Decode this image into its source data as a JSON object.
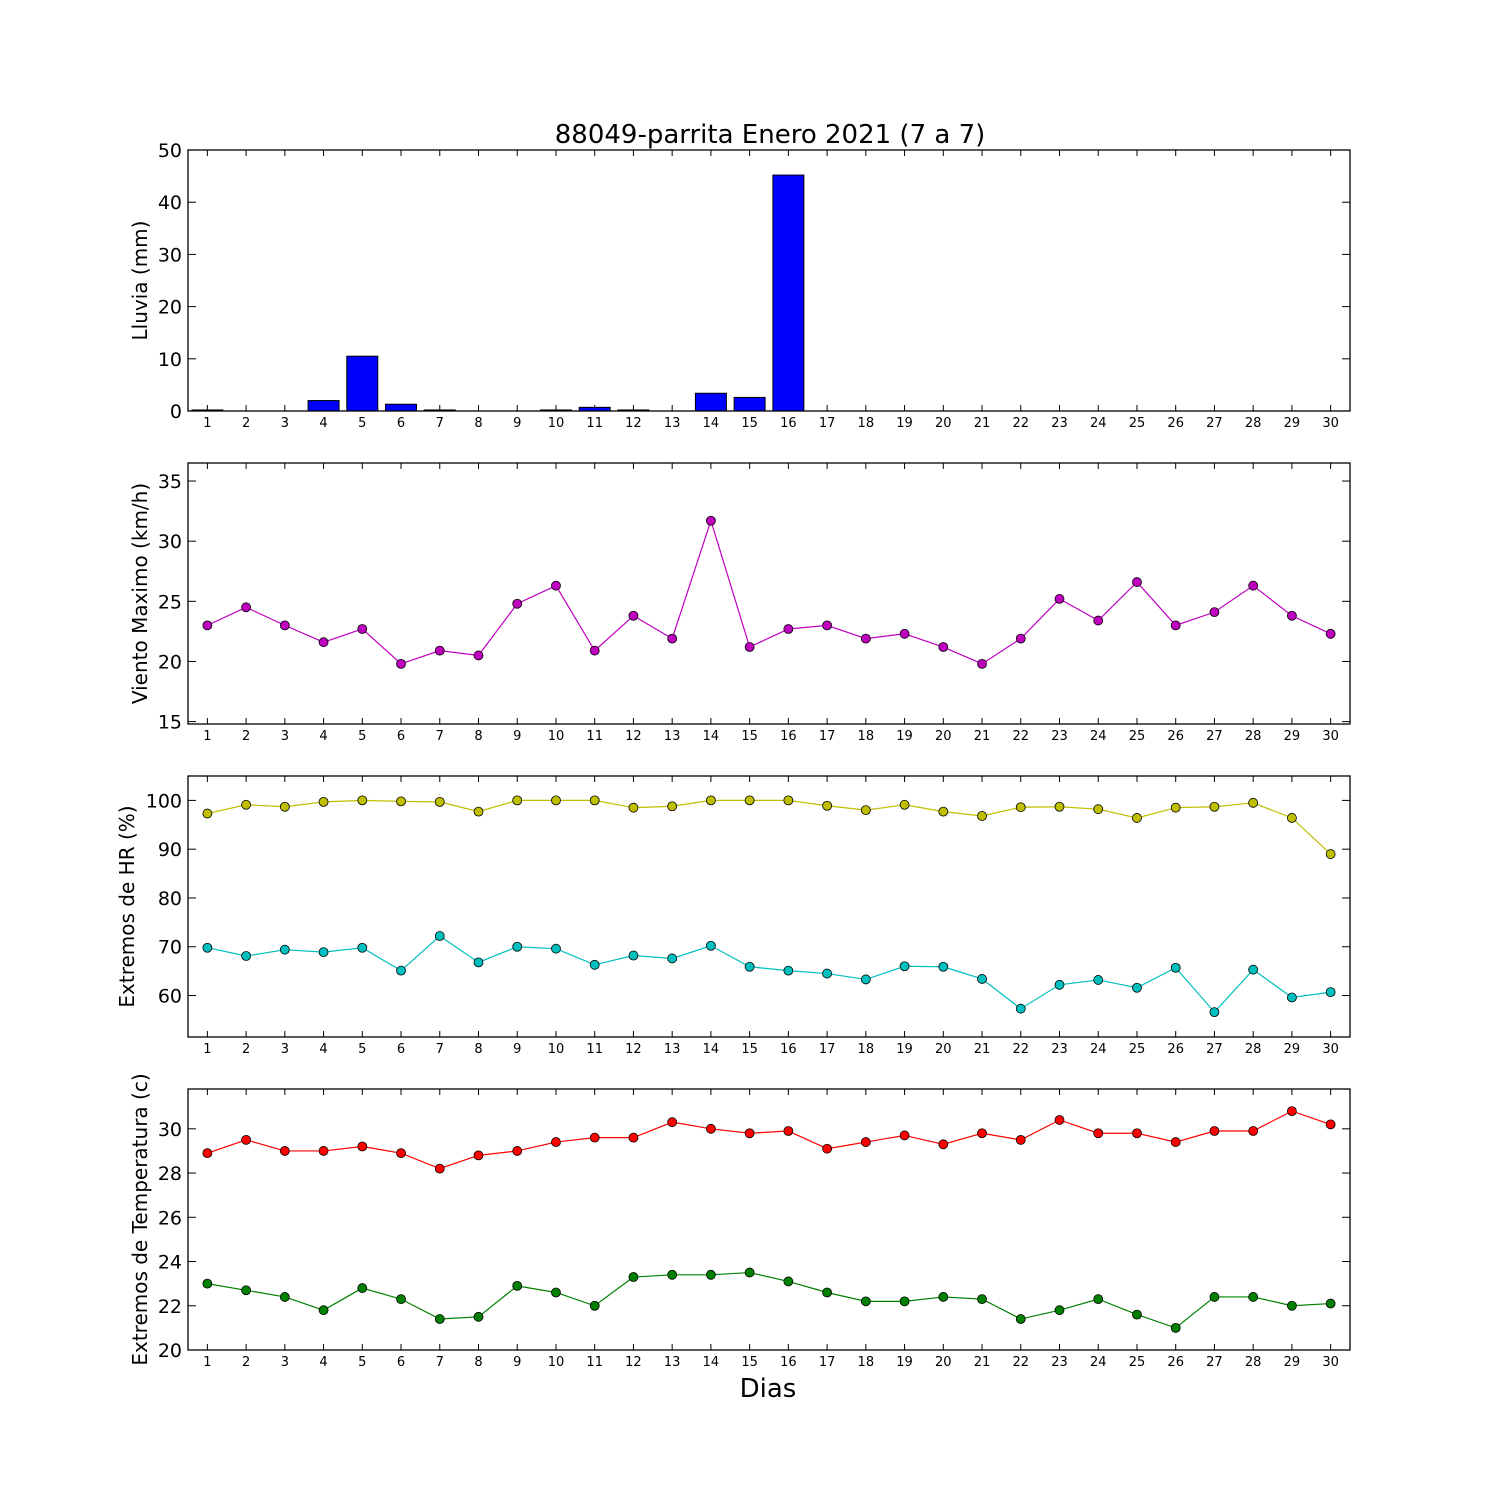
{
  "title": "88049-parrita Enero 2021  (7 a 7)",
  "xlabel": "Dias",
  "days": [
    1,
    2,
    3,
    4,
    5,
    6,
    7,
    8,
    9,
    10,
    11,
    12,
    13,
    14,
    15,
    16,
    17,
    18,
    19,
    20,
    21,
    22,
    23,
    24,
    25,
    26,
    27,
    28,
    29,
    30
  ],
  "chart_data": [
    {
      "type": "bar",
      "ylabel": "Lluvia (mm)",
      "ylim": [
        0,
        50
      ],
      "yticks": [
        0,
        10,
        20,
        30,
        40,
        50
      ],
      "categories": [
        1,
        2,
        3,
        4,
        5,
        6,
        7,
        8,
        9,
        10,
        11,
        12,
        13,
        14,
        15,
        16,
        17,
        18,
        19,
        20,
        21,
        22,
        23,
        24,
        25,
        26,
        27,
        28,
        29,
        30
      ],
      "series": [
        {
          "color": "#0000ff",
          "values": [
            0.2,
            0,
            0,
            2.0,
            10.5,
            1.3,
            0.2,
            0,
            0,
            0.2,
            0.7,
            0.2,
            0,
            3.4,
            2.6,
            45.2,
            0,
            0,
            0,
            0,
            0,
            0,
            0,
            0,
            0,
            0,
            0,
            0,
            0,
            0
          ]
        }
      ]
    },
    {
      "type": "line",
      "ylabel": "Viento Maximo (km/h)",
      "ylim": [
        14.8,
        36.5
      ],
      "yticks": [
        15,
        20,
        25,
        30,
        35
      ],
      "x": [
        1,
        2,
        3,
        4,
        5,
        6,
        7,
        8,
        9,
        10,
        11,
        12,
        13,
        14,
        15,
        16,
        17,
        18,
        19,
        20,
        21,
        22,
        23,
        24,
        25,
        26,
        27,
        28,
        29,
        30
      ],
      "series": [
        {
          "color": "#bf00bf",
          "values": [
            23.0,
            24.5,
            23.0,
            21.6,
            22.7,
            19.8,
            20.9,
            20.5,
            24.8,
            26.3,
            20.9,
            23.8,
            21.9,
            31.7,
            21.2,
            22.7,
            23.0,
            21.9,
            22.3,
            21.2,
            19.8,
            21.9,
            25.2,
            23.4,
            26.6,
            23.0,
            24.1,
            26.3,
            23.8,
            22.3
          ]
        }
      ]
    },
    {
      "type": "line",
      "ylabel": "Extremos de HR (%)",
      "ylim": [
        51.5,
        105
      ],
      "yticks": [
        60,
        70,
        80,
        90,
        100
      ],
      "x": [
        1,
        2,
        3,
        4,
        5,
        6,
        7,
        8,
        9,
        10,
        11,
        12,
        13,
        14,
        15,
        16,
        17,
        18,
        19,
        20,
        21,
        22,
        23,
        24,
        25,
        26,
        27,
        28,
        29,
        30
      ],
      "series": [
        {
          "color": "#bfbf00",
          "values": [
            97.3,
            99.1,
            98.7,
            99.7,
            100,
            99.8,
            99.7,
            97.7,
            100,
            100,
            100,
            98.5,
            98.8,
            100,
            100,
            100,
            98.9,
            98.0,
            99.1,
            97.7,
            96.8,
            98.6,
            98.7,
            98.2,
            96.4,
            98.5,
            98.7,
            99.5,
            96.4,
            89.0
          ]
        },
        {
          "color": "#00bfbf",
          "values": [
            69.8,
            68.1,
            69.4,
            68.9,
            69.8,
            65.1,
            72.2,
            66.8,
            70.0,
            69.6,
            66.3,
            68.2,
            67.6,
            70.2,
            65.9,
            65.1,
            64.5,
            63.3,
            66.0,
            65.9,
            63.4,
            57.3,
            62.2,
            63.2,
            61.6,
            65.7,
            56.6,
            65.3,
            59.6,
            60.7
          ]
        }
      ]
    },
    {
      "type": "line",
      "ylabel": "Extremos de Temperatura (c)",
      "ylim": [
        20,
        31.8
      ],
      "yticks": [
        20,
        22,
        24,
        26,
        28,
        30
      ],
      "x": [
        1,
        2,
        3,
        4,
        5,
        6,
        7,
        8,
        9,
        10,
        11,
        12,
        13,
        14,
        15,
        16,
        17,
        18,
        19,
        20,
        21,
        22,
        23,
        24,
        25,
        26,
        27,
        28,
        29,
        30
      ],
      "series": [
        {
          "color": "#ff0000",
          "values": [
            28.9,
            29.5,
            29.0,
            29.0,
            29.2,
            28.9,
            28.2,
            28.8,
            29.0,
            29.4,
            29.6,
            29.6,
            30.3,
            30.0,
            29.8,
            29.9,
            29.1,
            29.4,
            29.7,
            29.3,
            29.8,
            29.5,
            30.4,
            29.8,
            29.8,
            29.4,
            29.9,
            29.9,
            30.8,
            30.2
          ]
        },
        {
          "color": "#008000",
          "values": [
            23.0,
            22.7,
            22.4,
            21.8,
            22.8,
            22.3,
            21.4,
            21.5,
            22.9,
            22.6,
            22.0,
            23.3,
            23.4,
            23.4,
            23.5,
            23.1,
            22.6,
            22.2,
            22.2,
            22.4,
            22.3,
            21.4,
            21.8,
            22.3,
            21.6,
            21.0,
            22.4,
            22.4,
            22.0,
            22.1
          ]
        }
      ]
    }
  ]
}
